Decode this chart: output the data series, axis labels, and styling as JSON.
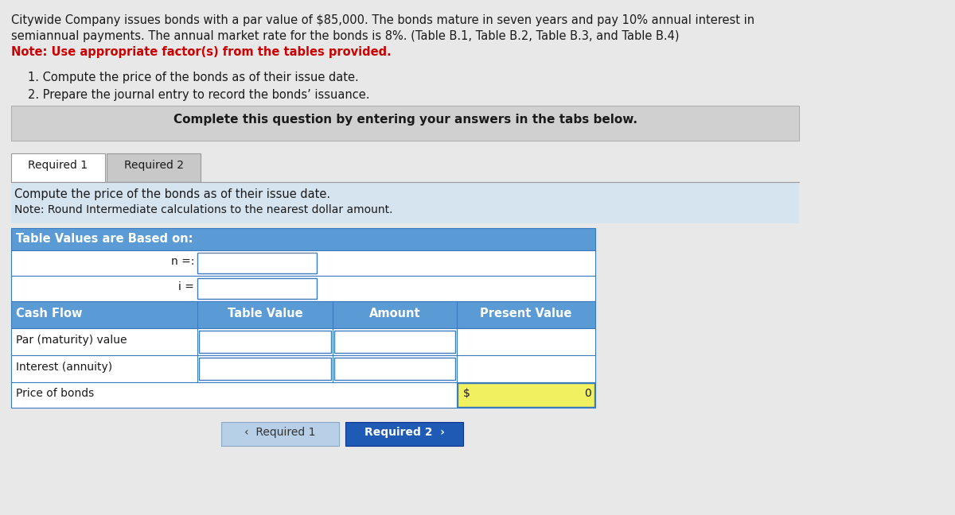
{
  "line1": "Citywide Company issues bonds with a par value of $85,000. The bonds mature in seven years and pay 10% annual interest in",
  "line2": "semiannual payments. The annual market rate for the bonds is 8%. (Table B.1, Table B.2, Table B.3, and Table B.4)",
  "note_bold": "Note: Use appropriate factor(s) from the tables provided.",
  "item1": "1. Compute the price of the bonds as of their issue date.",
  "item2": "2. Prepare the journal entry to record the bonds’ issuance.",
  "complete_box_text": "Complete this question by entering your answers in the tabs below.",
  "tab1": "Required 1",
  "tab2": "Required 2",
  "instruction_line1": "Compute the price of the bonds as of their issue date.",
  "instruction_line2": "Note: Round Intermediate calculations to the nearest dollar amount.",
  "table_header": "Table Values are Based on:",
  "n_label": "n =:",
  "i_label": "i =",
  "col_cash_flow": "Cash Flow",
  "col_table_value": "Table Value",
  "col_amount": "Amount",
  "col_present_value": "Present Value",
  "row1_label": "Par (maturity) value",
  "row2_label": "Interest (annuity)",
  "row3_label": "Price of bonds",
  "price_dollar": "$",
  "price_value": "0",
  "btn_left_text": "‹  Required 1",
  "btn_right_text": "Required 2  ›",
  "bg_color": "#e8e8e8",
  "header_blue": "#5b9bd5",
  "dark_blue_btn": "#1f5bb5",
  "light_blue_btn": "#b8cfe8",
  "complete_box_bg": "#d0d0d0",
  "instruction_bg": "#d6e4f0",
  "tab_active_bg": "#ffffff",
  "tab_inactive_bg": "#c8c8c8",
  "yellow_cell": "#f0f060",
  "table_border": "#3a7abf",
  "white": "#ffffff",
  "text_dark": "#1a1a1a",
  "note_color": "#cc0000",
  "underline_color": "#2244aa",
  "row_bg": "#f5f5f5"
}
